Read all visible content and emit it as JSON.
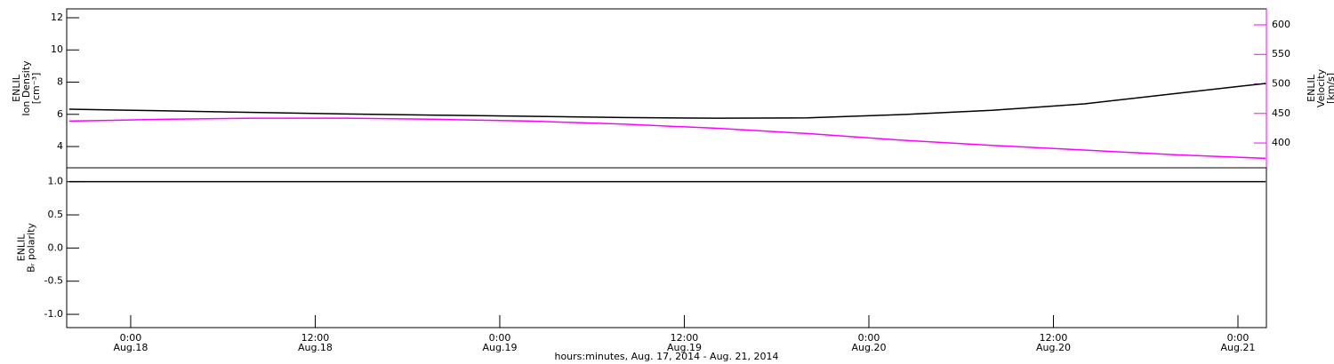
{
  "chart_data": [
    {
      "type": "line",
      "ylabel": [
        "ENLIL",
        "Ion Density",
        "[cm⁻³]"
      ],
      "y2label": [
        "ENLIL",
        "Velocity",
        "[km/s]"
      ],
      "x": [
        20,
        26,
        32,
        38,
        44,
        50,
        56,
        62,
        68,
        74,
        80,
        86,
        92,
        97.8
      ],
      "xlim": [
        19.84,
        97.85
      ],
      "ylim": [
        2.68,
        12.55
      ],
      "yticks": [
        4,
        6,
        8,
        10,
        12
      ],
      "y2lim": [
        358,
        627
      ],
      "y2ticks": [
        400,
        450,
        500,
        550,
        600
      ],
      "y2color": "#ff00ff",
      "series": [
        {
          "name": "Ion Density",
          "color": "#000000",
          "values": [
            6.32,
            6.22,
            6.12,
            6.02,
            5.95,
            5.88,
            5.8,
            5.76,
            5.78,
            5.98,
            6.25,
            6.65,
            7.3,
            7.92
          ]
        },
        {
          "name": "Velocity",
          "color": "#ff00ff",
          "axis": "y2",
          "values": [
            437,
            440,
            442,
            442,
            440,
            437,
            432,
            425,
            416,
            405,
            396,
            388,
            380,
            374
          ]
        }
      ]
    },
    {
      "type": "line",
      "ylabel": [
        "ENLIL",
        "Bᵣ polarity"
      ],
      "xlabel": "hours:minutes, Aug. 17, 2014 - Aug. 21, 2014",
      "x": [
        20,
        26,
        32,
        38,
        44,
        50,
        56,
        62,
        68,
        74,
        80,
        86,
        92,
        97.8
      ],
      "xlim": [
        19.84,
        97.85
      ],
      "xticks": [
        {
          "value": 24,
          "label": [
            "0:00",
            "Aug.18"
          ]
        },
        {
          "value": 36,
          "label": [
            "12:00",
            "Aug.18"
          ]
        },
        {
          "value": 48,
          "label": [
            "0:00",
            "Aug.19"
          ]
        },
        {
          "value": 60,
          "label": [
            "12:00",
            "Aug.19"
          ]
        },
        {
          "value": 72,
          "label": [
            "0:00",
            "Aug.20"
          ]
        },
        {
          "value": 84,
          "label": [
            "12:00",
            "Aug.20"
          ]
        },
        {
          "value": 96,
          "label": [
            "0:00",
            "Aug.21"
          ]
        }
      ],
      "ylim": [
        -1.2,
        1.21
      ],
      "yticks": [
        {
          "value": -1,
          "label": "-1.0"
        },
        -0.5,
        {
          "value": 0,
          "label": "0.0"
        },
        0.5,
        {
          "value": 1,
          "label": "1.0"
        }
      ],
      "series": [
        {
          "name": "Br polarity",
          "color": "#000000",
          "values": [
            1,
            1,
            1,
            1,
            1,
            1,
            1,
            1,
            1,
            1,
            1,
            1,
            1,
            1
          ]
        }
      ]
    }
  ]
}
